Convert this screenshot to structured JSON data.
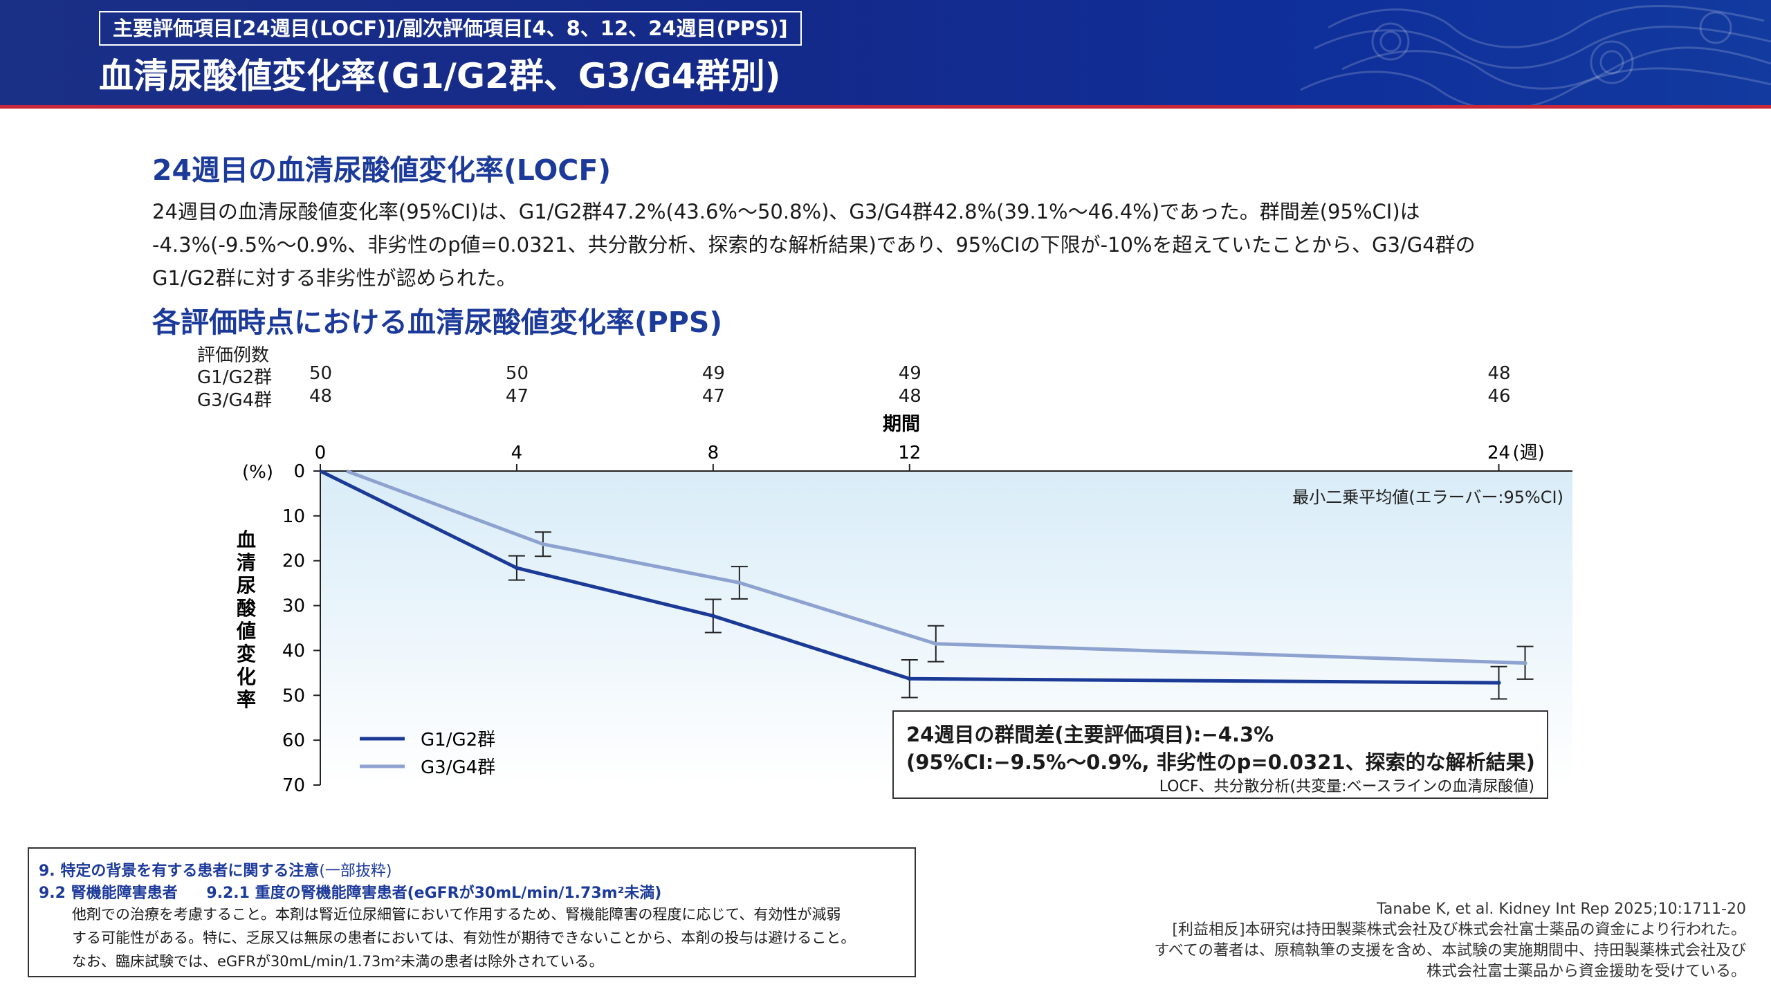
{
  "header": {
    "subtitle": "主要評価項目[24週目(LOCF)]/副次評価項目[4、8、12、24週目(PPS)]",
    "title": "血清尿酸値変化率(G1/G2群、G3/G4群別)"
  },
  "section1": {
    "title": "24週目の血清尿酸値変化率(LOCF)",
    "lines": [
      "24週目の血清尿酸値変化率(95%CI)は、G1/G2群47.2%(43.6%〜50.8%)、G3/G4群42.8%(39.1%〜46.4%)であった。群間差(95%CI)は",
      "-4.3%(-9.5%〜0.9%、非劣性のp値=0.0321、共分散分析、探索的な解析結果)であり、95%CIの下限が-10%を超えていたことから、G3/G4群の",
      "G1/G2群に対する非劣性が認められた。"
    ]
  },
  "section2": {
    "title": "各評価時点における血清尿酸値変化率(PPS)"
  },
  "n_table": {
    "header": "評価例数",
    "rows": [
      {
        "label": "G1/G2群",
        "values": [
          "50",
          "50",
          "49",
          "49",
          "48"
        ]
      },
      {
        "label": "G3/G4群",
        "values": [
          "48",
          "47",
          "47",
          "48",
          "46"
        ]
      }
    ]
  },
  "chart_data": {
    "type": "line",
    "xlabel": "期間",
    "x_unit": "(週)",
    "ylabel": "血清尿酸値変化率",
    "y_unit": "(%)",
    "x_ticks": [
      0,
      4,
      8,
      12,
      24
    ],
    "y_ticks": [
      0,
      10,
      20,
      30,
      40,
      50,
      60,
      70
    ],
    "xlim": [
      0,
      25.5
    ],
    "ylim": [
      0,
      70
    ],
    "y_inverted": true,
    "annotation": "最小二乗平均値(エラーバー:95%CI)",
    "legend_position": "bottom-left",
    "series": [
      {
        "name": "G1/G2群",
        "color": "#1a3a96",
        "x": [
          0,
          4,
          8,
          12,
          24
        ],
        "y": [
          0,
          21.6,
          32.3,
          46.3,
          47.2
        ],
        "ci_low": [
          null,
          18.9,
          28.6,
          42.1,
          43.6
        ],
        "ci_high": [
          null,
          24.3,
          36.0,
          50.5,
          50.8
        ]
      },
      {
        "name": "G3/G4群",
        "color": "#8ea2d0",
        "x": [
          0,
          4,
          8,
          12,
          24
        ],
        "y": [
          0,
          16.3,
          24.9,
          38.5,
          42.8
        ],
        "ci_low": [
          null,
          13.6,
          21.3,
          34.5,
          39.1
        ],
        "ci_high": [
          null,
          19.0,
          28.5,
          42.5,
          46.4
        ]
      }
    ]
  },
  "diff_box": {
    "line1": "24週目の群間差(主要評価項目):−4.3%",
    "line2": "(95%CI:−9.5%〜0.9%, 非劣性のp=0.0321、探索的な解析結果)",
    "note": "LOCF、共分散分析(共変量:ベースラインの血清尿酸値)"
  },
  "warning": {
    "h1": "9. 特定の背景を有する患者に関する注意",
    "h1_note": "(一部抜粋)",
    "h2a": "9.2 腎機能障害患者",
    "h2b": "9.2.1 重度の腎機能障害患者(eGFRが30mL/min/1.73m²未満)",
    "lines": [
      "他剤での治療を考慮すること。本剤は腎近位尿細管において作用するため、腎機能障害の程度に応じて、有効性が減弱",
      "する可能性がある。特に、乏尿又は無尿の患者においては、有効性が期待できないことから、本剤の投与は避けること。",
      "なお、臨床試験では、eGFRが30mL/min/1.73m²未満の患者は除外されている。"
    ]
  },
  "reference": {
    "citation": "Tanabe K, et al. Kidney Int Rep 2025;10:1711-20",
    "coi": [
      "[利益相反]本研究は持田製薬株式会社及び株式会社富士薬品の資金により行われた。",
      "すべての著者は、原稿執筆の支援を含め、本試験の実施期間中、持田製薬株式会社及び",
      "株式会社富士薬品から資金援助を受けている。"
    ]
  }
}
